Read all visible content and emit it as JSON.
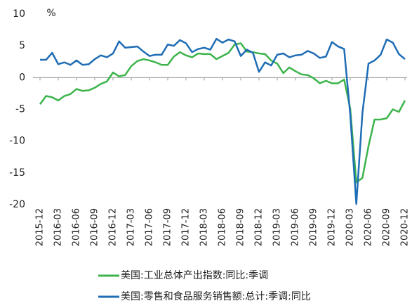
{
  "chart_data": {
    "type": "line",
    "unit": "%",
    "categories": [
      "2015-12",
      null,
      null,
      "2016-03",
      null,
      null,
      "2016-06",
      null,
      null,
      "2016-09",
      null,
      null,
      "2016-12",
      null,
      null,
      "2017-03",
      null,
      null,
      "2017-06",
      null,
      null,
      "2017-09",
      null,
      null,
      "2017-12",
      null,
      null,
      "2018-03",
      null,
      null,
      "2018-06",
      null,
      null,
      "2018-09",
      null,
      null,
      "2018-12",
      null,
      null,
      "2019-03",
      null,
      null,
      "2019-06",
      null,
      null,
      "2019-09",
      null,
      null,
      "2019-12",
      null,
      null,
      "2020-03",
      null,
      null,
      "2020-06",
      null,
      null,
      "2020-09",
      null,
      null,
      "2020-12"
    ],
    "series": [
      {
        "name": "美国:工业总体产出指数:同比:季调",
        "color": "#3cb44b",
        "values": [
          -4.2,
          -2.9,
          -3.1,
          -3.6,
          -2.9,
          -2.6,
          -1.8,
          -2.1,
          -2.0,
          -1.6,
          -1.0,
          -0.6,
          0.8,
          0.2,
          0.4,
          1.8,
          2.6,
          2.9,
          2.7,
          2.4,
          2.0,
          2.0,
          3.3,
          4.0,
          3.5,
          3.2,
          3.8,
          3.7,
          3.7,
          2.9,
          3.4,
          3.9,
          5.2,
          5.4,
          4.1,
          4.0,
          3.8,
          3.7,
          2.7,
          2.2,
          0.7,
          1.6,
          1.0,
          0.5,
          0.4,
          -0.1,
          -0.9,
          -0.5,
          -0.9,
          -0.9,
          -0.3,
          -4.9,
          -16.5,
          -15.8,
          -10.8,
          -6.6,
          -6.6,
          -6.4,
          -5.0,
          -5.4,
          -3.6
        ]
      },
      {
        "name": "美国:零售和食品服务销售额:总计:季调:同比",
        "color": "#1f6db5",
        "values": [
          2.8,
          2.8,
          3.9,
          2.1,
          2.4,
          2.0,
          2.7,
          2.0,
          2.1,
          2.9,
          3.5,
          3.2,
          3.8,
          5.7,
          4.7,
          4.8,
          4.9,
          4.1,
          3.4,
          3.6,
          3.6,
          5.2,
          5.0,
          5.9,
          5.4,
          4.0,
          4.5,
          4.7,
          4.4,
          6.1,
          5.5,
          6.0,
          5.7,
          3.4,
          4.4,
          3.9,
          0.9,
          2.4,
          1.9,
          3.6,
          3.8,
          3.2,
          3.5,
          3.6,
          4.2,
          3.8,
          3.1,
          3.3,
          5.6,
          4.9,
          4.5,
          -5.8,
          -19.9,
          -5.6,
          2.2,
          2.7,
          3.6,
          6.0,
          5.5,
          3.7,
          2.9
        ]
      }
    ],
    "ylim": [
      -20,
      10
    ],
    "yticks": [
      -20,
      -15,
      -10,
      -5,
      0,
      5,
      10
    ]
  }
}
